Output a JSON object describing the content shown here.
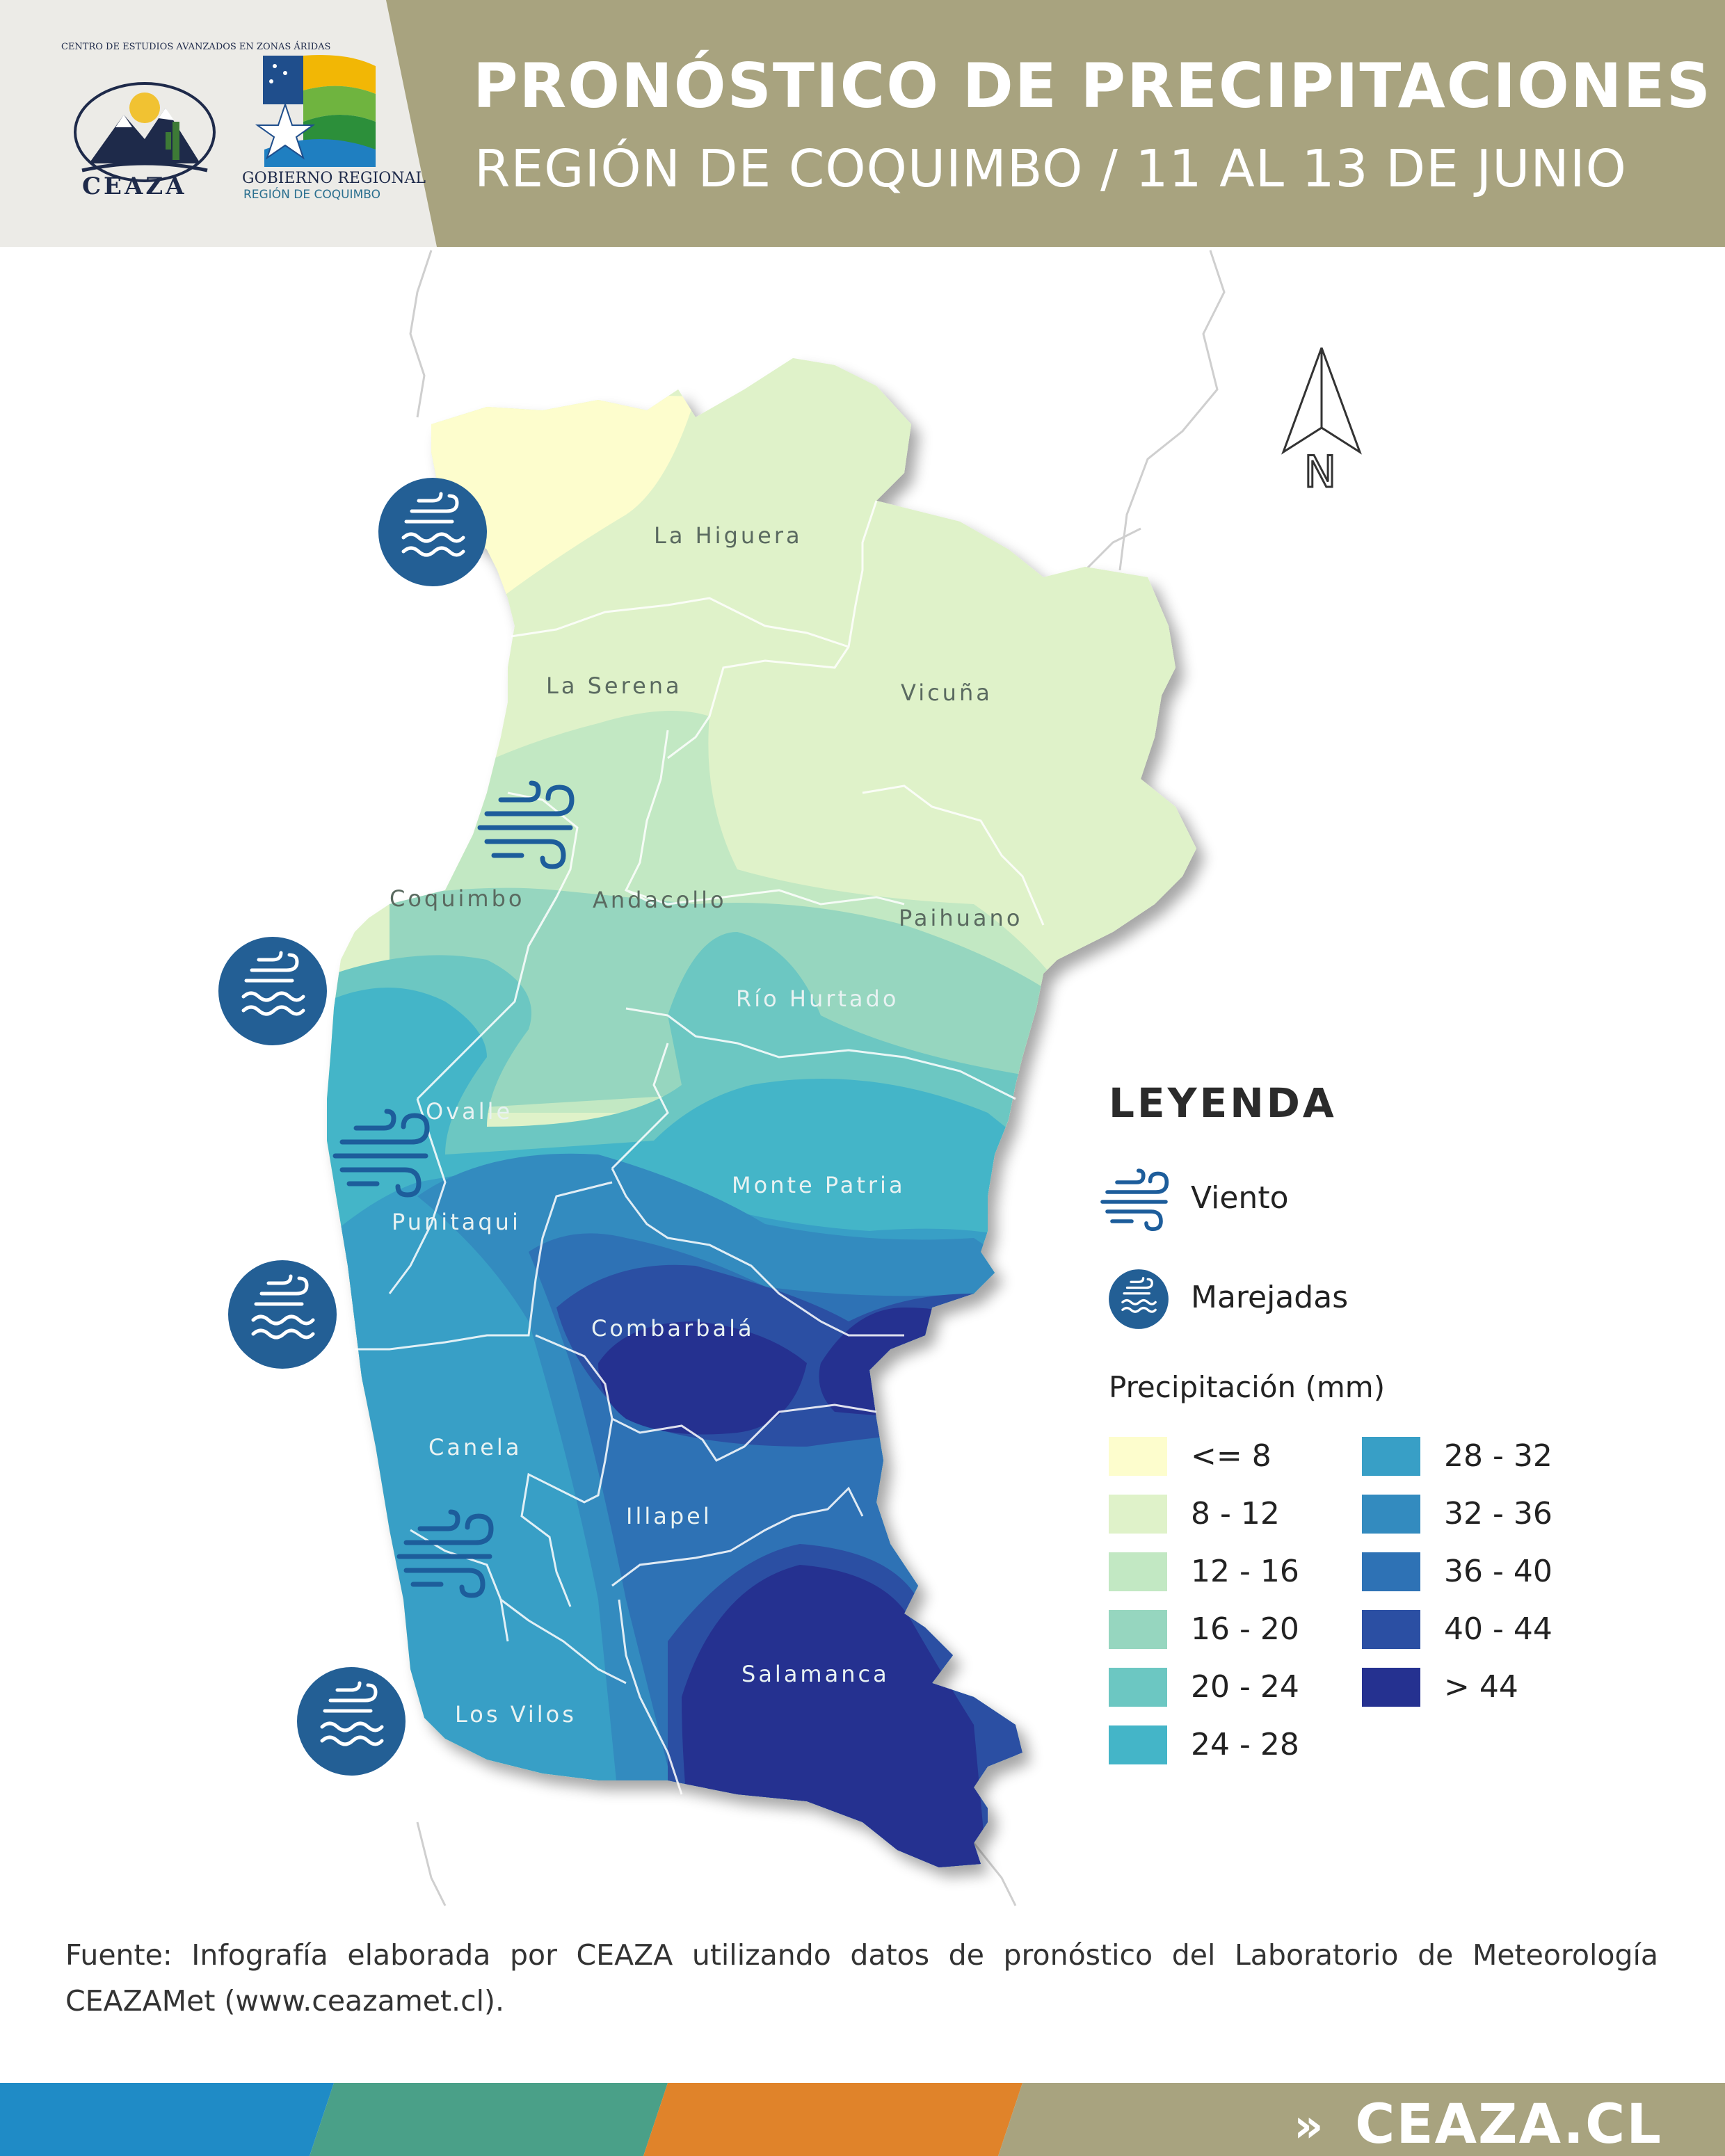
{
  "header": {
    "title": "PRONÓSTICO DE PRECIPITACIONES",
    "subtitle": "REGIÓN DE COQUIMBO / 11 AL 13 DE JUNIO",
    "band_color": "#a8a37f",
    "logos": {
      "ceaza_word": "CEAZA",
      "ceaza_arc": "CENTRO DE ESTUDIOS AVANZADOS EN ZONAS ÁRIDAS",
      "gore_word": "GOBIERNO REGIONAL",
      "gore_sub": "REGIÓN DE COQUIMBO"
    }
  },
  "map": {
    "north_label": "N",
    "communes": [
      {
        "name": "La Higuera",
        "tone": "dark"
      },
      {
        "name": "La Serena",
        "tone": "dark"
      },
      {
        "name": "Vicuña",
        "tone": "dark"
      },
      {
        "name": "Coquimbo",
        "tone": "dark"
      },
      {
        "name": "Andacollo",
        "tone": "dark"
      },
      {
        "name": "Paihuano",
        "tone": "dark"
      },
      {
        "name": "Río Hurtado",
        "tone": "light"
      },
      {
        "name": "Ovalle",
        "tone": "light"
      },
      {
        "name": "Monte Patria",
        "tone": "light"
      },
      {
        "name": "Punitaqui",
        "tone": "light"
      },
      {
        "name": "Combarbalá",
        "tone": "light"
      },
      {
        "name": "Canela",
        "tone": "light"
      },
      {
        "name": "Illapel",
        "tone": "light"
      },
      {
        "name": "Salamanca",
        "tone": "light"
      },
      {
        "name": "Los Vilos",
        "tone": "light"
      }
    ],
    "icons": [
      {
        "type": "marejadas-icon"
      },
      {
        "type": "viento-icon"
      },
      {
        "type": "marejadas-icon"
      },
      {
        "type": "viento-icon"
      },
      {
        "type": "marejadas-icon"
      },
      {
        "type": "viento-icon"
      },
      {
        "type": "marejadas-icon"
      }
    ]
  },
  "legend": {
    "title": "LEYENDA",
    "viento_label": "Viento",
    "marejadas_label": "Marejadas",
    "precip_title": "Precipitación (mm)",
    "classes": [
      {
        "label": "<= 8",
        "color": "#fdfdcd"
      },
      {
        "label": "8 - 12",
        "color": "#dff2c9"
      },
      {
        "label": "12 - 16",
        "color": "#c2e8c3"
      },
      {
        "label": "16 - 20",
        "color": "#96d6bf"
      },
      {
        "label": "20 - 24",
        "color": "#6cc7c2"
      },
      {
        "label": "24 - 28",
        "color": "#44b5c8"
      },
      {
        "label": "28 - 32",
        "color": "#389fc6"
      },
      {
        "label": "32 - 36",
        "color": "#338bbf"
      },
      {
        "label": "36 - 40",
        "color": "#2e72b5"
      },
      {
        "label": "40 - 44",
        "color": "#2b4fa3"
      },
      {
        "label": "> 44",
        "color": "#253190"
      }
    ]
  },
  "source": "Fuente: Infografía elaborada por CEAZA utilizando datos de pronóstico del Laboratorio de Meteorología CEAZAMet (www.ceazamet.cl).",
  "footer": {
    "arrow": "»",
    "url": "CEAZA.CL",
    "segment_colors": [
      "#1f8bc6",
      "#4aa088",
      "#e0832a",
      "#a8a37f"
    ]
  }
}
